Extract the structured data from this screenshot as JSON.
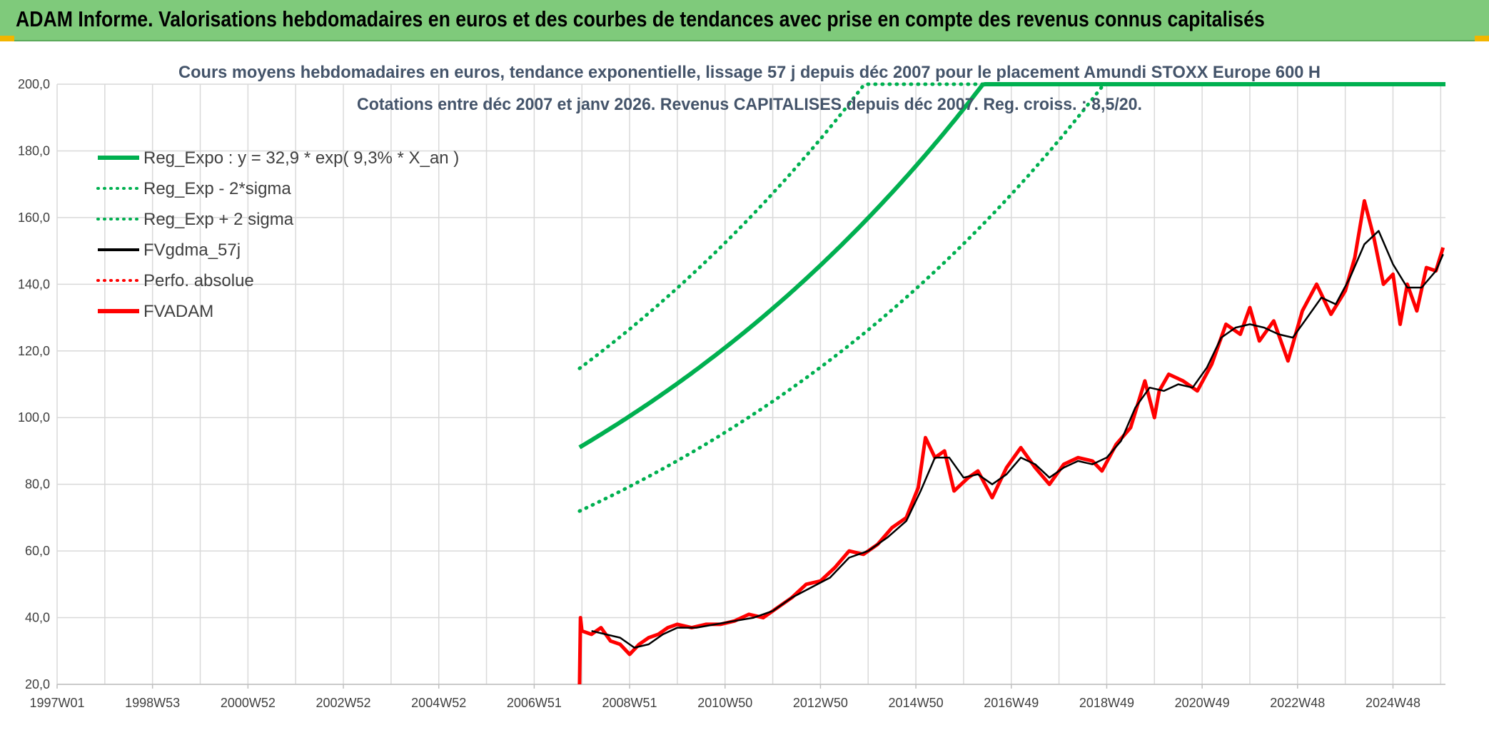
{
  "header": {
    "title": "ADAM Informe. Valorisations hebdomadaires en euros et des courbes de tendances avec prise en compte des revenus connus capitalisés"
  },
  "colors": {
    "header_bg": "#7fca7b",
    "reg_green": "#00b050",
    "fvadam_red": "#ff0000",
    "fvgdma_black": "#000000",
    "corner": "#f2b500"
  },
  "chart_data": {
    "type": "line",
    "title": "Cours moyens hebdomadaires en euros, tendance exponentielle, lissage 57 j depuis déc 2007 pour le placement Amundi STOXX Europe 600 H",
    "subtitle": "Cotations entre déc 2007 et janv 2026. Revenus CAPITALISES depuis déc 2007. Reg. croiss. : 8,5/20.",
    "xlabel": "",
    "ylabel": "",
    "ylim": [
      20,
      200
    ],
    "xlim": [
      1997.0,
      2026.1
    ],
    "y_ticks": [
      "200,0",
      "180,0",
      "160,0",
      "140,0",
      "120,0",
      "100,0",
      "80,0",
      "60,0",
      "40,0",
      "20,0"
    ],
    "y_tick_values": [
      200,
      180,
      160,
      140,
      120,
      100,
      80,
      60,
      40,
      20
    ],
    "x_ticks": [
      "1997W01",
      "1998W53",
      "2000W52",
      "2002W52",
      "2004W52",
      "2006W51",
      "2008W51",
      "2010W50",
      "2012W50",
      "2014W50",
      "2016W49",
      "2018W49",
      "2020W49",
      "2022W48",
      "2024W48"
    ],
    "x_tick_values": [
      1997.0,
      1999.0,
      2001.0,
      2003.0,
      2005.0,
      2007.0,
      2009.0,
      2011.0,
      2013.0,
      2015.0,
      2017.0,
      2019.0,
      2021.0,
      2023.0,
      2025.0
    ],
    "grid": true,
    "legend_position": "top-left",
    "legend": [
      {
        "label": "Reg_Expo : y = 32,9 * exp( 9,3% *  X_an )",
        "color": "#00b050",
        "style": "solid-thick"
      },
      {
        "label": "Reg_Exp - 2*sigma",
        "color": "#00b050",
        "style": "dotted"
      },
      {
        "label": "Reg_Exp + 2 sigma",
        "color": "#00b050",
        "style": "dotted"
      },
      {
        "label": "FVgdma_57j",
        "color": "#000000",
        "style": "solid"
      },
      {
        "label": "Perfo. absolue",
        "color": "#ff0000",
        "style": "dotted"
      },
      {
        "label": "FVADAM",
        "color": "#ff0000",
        "style": "solid-thick"
      }
    ],
    "regression": {
      "a": 32.9,
      "rate": 0.093,
      "start_year": 2007.95,
      "end_year": 2026.1,
      "lower_factor": 0.79,
      "upper_factor": 1.26
    },
    "series": [
      {
        "name": "FVADAM",
        "x": [
          2007.95,
          2007.97,
          2008.0,
          2008.2,
          2008.4,
          2008.6,
          2008.8,
          2009.0,
          2009.2,
          2009.4,
          2009.6,
          2009.8,
          2010.0,
          2010.3,
          2010.6,
          2010.9,
          2011.2,
          2011.5,
          2011.8,
          2012.1,
          2012.4,
          2012.7,
          2013.0,
          2013.3,
          2013.6,
          2013.9,
          2014.2,
          2014.5,
          2014.8,
          2015.05,
          2015.2,
          2015.4,
          2015.6,
          2015.8,
          2016.1,
          2016.3,
          2016.6,
          2016.9,
          2017.2,
          2017.5,
          2017.8,
          2018.1,
          2018.4,
          2018.7,
          2018.9,
          2019.2,
          2019.5,
          2019.8,
          2020.0,
          2020.1,
          2020.3,
          2020.6,
          2020.9,
          2021.2,
          2021.5,
          2021.8,
          2022.0,
          2022.2,
          2022.5,
          2022.8,
          2023.1,
          2023.4,
          2023.7,
          2024.0,
          2024.2,
          2024.4,
          2024.6,
          2024.8,
          2025.0,
          2025.15,
          2025.3,
          2025.5,
          2025.7,
          2025.9,
          2026.05
        ],
        "values": [
          20,
          40,
          36,
          35,
          37,
          33,
          32,
          29,
          32,
          34,
          35,
          37,
          38,
          37,
          38,
          38,
          39,
          41,
          40,
          43,
          46,
          50,
          51,
          55,
          60,
          59,
          62,
          67,
          70,
          79,
          94,
          88,
          90,
          78,
          82,
          84,
          76,
          85,
          91,
          85,
          80,
          86,
          88,
          87,
          84,
          92,
          97,
          111,
          100,
          108,
          113,
          111,
          108,
          116,
          128,
          125,
          133,
          123,
          129,
          117,
          132,
          140,
          131,
          138,
          148,
          165,
          154,
          140,
          143,
          128,
          140,
          132,
          145,
          144,
          151
        ]
      },
      {
        "name": "FVgdma_57j",
        "x": [
          2008.2,
          2008.5,
          2008.8,
          2009.1,
          2009.4,
          2009.7,
          2010.0,
          2010.4,
          2010.8,
          2011.2,
          2011.6,
          2012.0,
          2012.4,
          2012.8,
          2013.2,
          2013.6,
          2014.0,
          2014.4,
          2014.8,
          2015.1,
          2015.4,
          2015.7,
          2016.0,
          2016.3,
          2016.6,
          2016.9,
          2017.2,
          2017.5,
          2017.8,
          2018.1,
          2018.4,
          2018.7,
          2019.0,
          2019.3,
          2019.6,
          2019.9,
          2020.2,
          2020.5,
          2020.8,
          2021.1,
          2021.4,
          2021.7,
          2022.0,
          2022.3,
          2022.6,
          2022.9,
          2023.2,
          2023.5,
          2023.8,
          2024.1,
          2024.4,
          2024.7,
          2025.0,
          2025.3,
          2025.6,
          2025.9,
          2026.05
        ],
        "values": [
          36,
          35,
          34,
          31,
          32,
          35,
          37,
          37,
          38,
          39,
          40,
          42,
          46,
          49,
          52,
          58,
          60,
          64,
          69,
          78,
          88,
          88,
          82,
          83,
          80,
          83,
          88,
          86,
          82,
          85,
          87,
          86,
          88,
          93,
          103,
          109,
          108,
          110,
          109,
          115,
          124,
          127,
          128,
          127,
          125,
          124,
          130,
          136,
          134,
          142,
          152,
          156,
          146,
          139,
          139,
          144,
          149
        ]
      }
    ]
  }
}
